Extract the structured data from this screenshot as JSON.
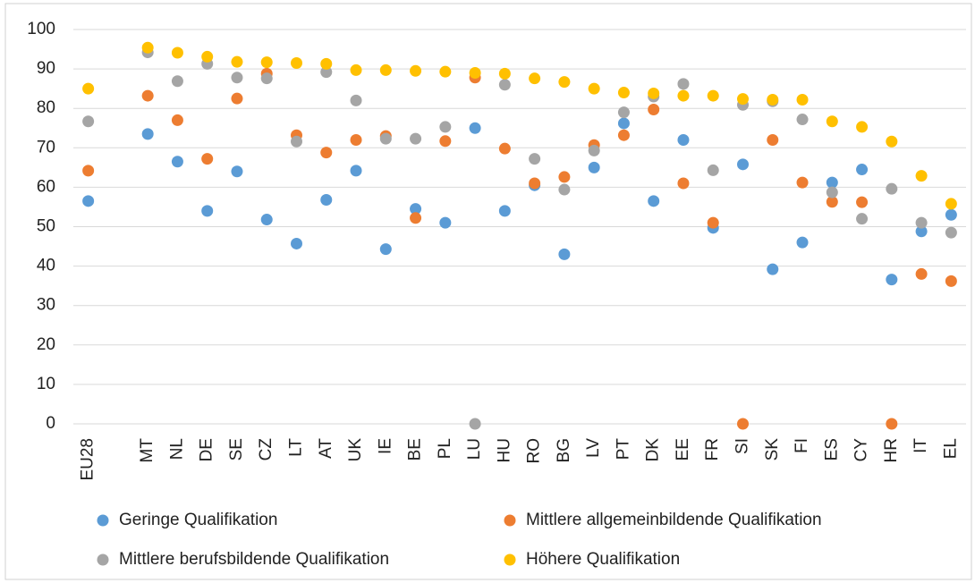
{
  "chart_data": {
    "type": "scatter",
    "categories": [
      "EU28",
      null,
      "MT",
      "NL",
      "DE",
      "SE",
      "CZ",
      "LT",
      "AT",
      "UK",
      "IE",
      "BE",
      "PL",
      "LU",
      "HU",
      "RO",
      "BG",
      "LV",
      "PT",
      "DK",
      "EE",
      "FR",
      "SI",
      "SK",
      "FI",
      "ES",
      "CY",
      "HR",
      "IT",
      "EL"
    ],
    "series": [
      {
        "name": "Geringe Qualifikation",
        "color": "#5b9bd5",
        "values": [
          56.5,
          null,
          73.5,
          66.5,
          54,
          64,
          51.8,
          45.7,
          56.8,
          64.2,
          44.3,
          54.5,
          51,
          75,
          54,
          60.5,
          43,
          65,
          76.2,
          56.5,
          72,
          49.7,
          65.8,
          39.2,
          46,
          61.2,
          64.5,
          36.6,
          48.8,
          53
        ]
      },
      {
        "name": "Mittlere allgemeinbildende Qualifikation",
        "color": "#ed7d31",
        "values": [
          64.2,
          null,
          83.2,
          77,
          67.2,
          82.5,
          88.8,
          73.2,
          68.8,
          72,
          73,
          52.2,
          71.7,
          87.8,
          69.8,
          61,
          62.6,
          70.7,
          73.2,
          79.7,
          61,
          51,
          0,
          72,
          61.2,
          56.3,
          56.2,
          0,
          38,
          36.2
        ]
      },
      {
        "name": "Mittlere berufsbildende Qualifikation",
        "color": "#a5a5a5",
        "values": [
          76.7,
          null,
          94.2,
          86.9,
          91.3,
          87.8,
          87.6,
          71.6,
          89.2,
          82,
          72.3,
          72.3,
          75.3,
          0,
          86,
          67.2,
          59.4,
          69.3,
          79,
          83,
          86.2,
          64.3,
          80.9,
          81.8,
          77.2,
          58.7,
          52,
          59.6,
          51,
          48.5
        ]
      },
      {
        "name": "Höhere Qualifikation",
        "color": "#ffc000",
        "values": [
          85,
          null,
          95.4,
          94.1,
          93.1,
          91.8,
          91.7,
          91.5,
          91.3,
          89.7,
          89.7,
          89.5,
          89.3,
          89,
          88.8,
          87.6,
          86.7,
          85,
          84,
          83.8,
          83.2,
          83.2,
          82.4,
          82.2,
          82.2,
          76.7,
          75.3,
          71.6,
          62.9,
          55.8
        ]
      }
    ],
    "ylim": [
      0,
      100
    ],
    "yticks": [
      0,
      10,
      20,
      30,
      40,
      50,
      60,
      70,
      80,
      90,
      100
    ],
    "grid": true,
    "legend": "bottom"
  }
}
